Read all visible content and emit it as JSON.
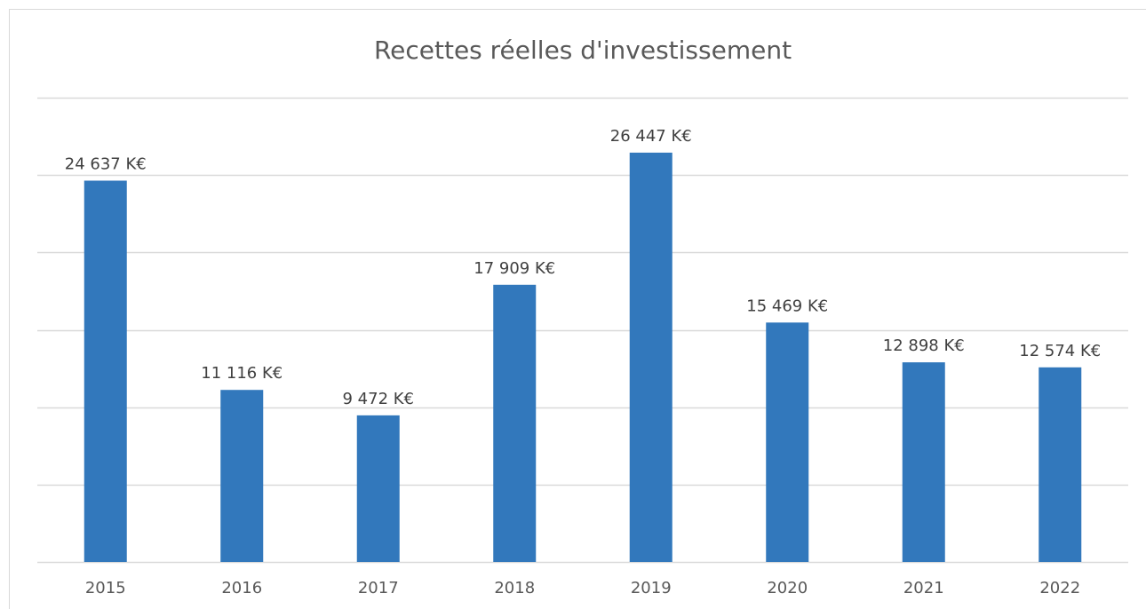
{
  "chart_data": {
    "type": "bar",
    "title": "Recettes réelles d'investissement",
    "categories": [
      "2015",
      "2016",
      "2017",
      "2018",
      "2019",
      "2020",
      "2021",
      "2022"
    ],
    "values": [
      24637,
      11116,
      9472,
      17909,
      26447,
      15469,
      12898,
      12574
    ],
    "value_labels": [
      "24 637 K€",
      "11 116 K€",
      "9 472 K€",
      "17 909 K€",
      "26 447 K€",
      "15 469 K€",
      "12 898 K€",
      "12 574 K€"
    ],
    "color": "#3278bc",
    "ylim": [
      0,
      30000
    ],
    "yticks": [
      0,
      5000,
      10000,
      15000,
      20000,
      25000,
      30000
    ],
    "grid": true
  }
}
